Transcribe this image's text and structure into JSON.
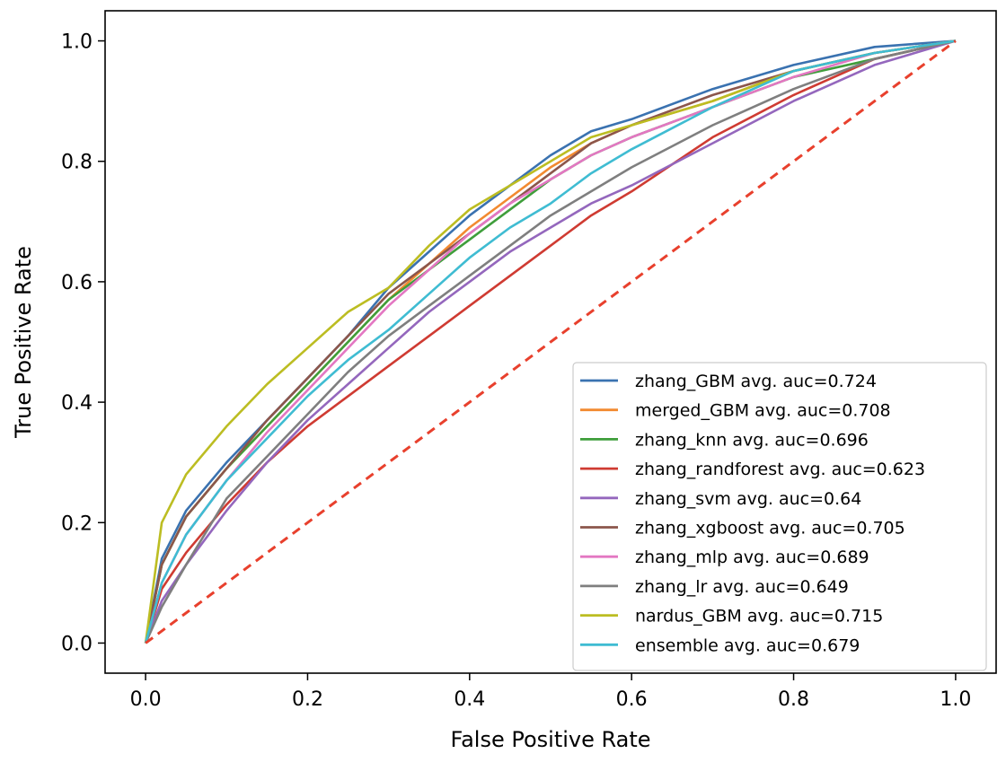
{
  "chart_data": {
    "type": "line",
    "title": "",
    "xlabel": "False Positive Rate",
    "ylabel": "True Positive Rate",
    "xlim": [
      -0.05,
      1.05
    ],
    "ylim": [
      -0.05,
      1.05
    ],
    "xticks": [
      "0.0",
      "0.2",
      "0.4",
      "0.6",
      "0.8",
      "1.0"
    ],
    "yticks": [
      "0.0",
      "0.2",
      "0.4",
      "0.6",
      "0.8",
      "1.0"
    ],
    "grid": false,
    "legend_position": "lower-right",
    "diagonal": {
      "x": [
        0,
        1
      ],
      "y": [
        0,
        1
      ],
      "color": "#e8402d",
      "style": "dashed"
    },
    "series": [
      {
        "name": "zhang_GBM avg. auc=0.724",
        "color": "#3a72b0",
        "x": [
          0,
          0.02,
          0.05,
          0.1,
          0.15,
          0.2,
          0.25,
          0.3,
          0.35,
          0.4,
          0.45,
          0.5,
          0.55,
          0.6,
          0.7,
          0.8,
          0.9,
          1.0
        ],
        "y": [
          0,
          0.14,
          0.22,
          0.3,
          0.37,
          0.44,
          0.51,
          0.59,
          0.65,
          0.71,
          0.76,
          0.81,
          0.85,
          0.87,
          0.92,
          0.96,
          0.99,
          1.0
        ]
      },
      {
        "name": "merged_GBM avg. auc=0.708",
        "color": "#f28a30",
        "x": [
          0,
          0.02,
          0.05,
          0.1,
          0.15,
          0.2,
          0.25,
          0.3,
          0.35,
          0.4,
          0.45,
          0.5,
          0.55,
          0.6,
          0.7,
          0.8,
          0.9,
          1.0
        ],
        "y": [
          0,
          0.13,
          0.21,
          0.29,
          0.36,
          0.43,
          0.5,
          0.57,
          0.63,
          0.69,
          0.74,
          0.79,
          0.83,
          0.86,
          0.9,
          0.95,
          0.98,
          1.0
        ]
      },
      {
        "name": "zhang_knn avg. auc=0.696",
        "color": "#3f9e3b",
        "x": [
          0,
          0.02,
          0.05,
          0.1,
          0.15,
          0.2,
          0.25,
          0.3,
          0.35,
          0.4,
          0.45,
          0.5,
          0.55,
          0.6,
          0.7,
          0.8,
          0.9,
          1.0
        ],
        "y": [
          0,
          0.13,
          0.21,
          0.29,
          0.36,
          0.43,
          0.5,
          0.57,
          0.62,
          0.67,
          0.72,
          0.77,
          0.81,
          0.84,
          0.89,
          0.94,
          0.97,
          1.0
        ]
      },
      {
        "name": "zhang_randforest avg. auc=0.623",
        "color": "#cf3b32",
        "x": [
          0,
          0.02,
          0.05,
          0.1,
          0.15,
          0.2,
          0.25,
          0.3,
          0.35,
          0.4,
          0.45,
          0.5,
          0.55,
          0.6,
          0.7,
          0.8,
          0.9,
          1.0
        ],
        "y": [
          0,
          0.09,
          0.15,
          0.23,
          0.3,
          0.36,
          0.41,
          0.46,
          0.51,
          0.56,
          0.61,
          0.66,
          0.71,
          0.75,
          0.84,
          0.91,
          0.97,
          1.0
        ]
      },
      {
        "name": "zhang_svm avg. auc=0.64",
        "color": "#9467bd",
        "x": [
          0,
          0.02,
          0.05,
          0.1,
          0.15,
          0.2,
          0.25,
          0.3,
          0.35,
          0.4,
          0.45,
          0.5,
          0.55,
          0.6,
          0.7,
          0.8,
          0.9,
          1.0
        ],
        "y": [
          0,
          0.07,
          0.13,
          0.22,
          0.3,
          0.37,
          0.43,
          0.49,
          0.55,
          0.6,
          0.65,
          0.69,
          0.73,
          0.76,
          0.83,
          0.9,
          0.96,
          1.0
        ]
      },
      {
        "name": "zhang_xgboost avg. auc=0.705",
        "color": "#8c564b",
        "x": [
          0,
          0.02,
          0.05,
          0.1,
          0.15,
          0.2,
          0.25,
          0.3,
          0.35,
          0.4,
          0.45,
          0.5,
          0.55,
          0.6,
          0.7,
          0.8,
          0.9,
          1.0
        ],
        "y": [
          0,
          0.13,
          0.21,
          0.29,
          0.37,
          0.44,
          0.51,
          0.58,
          0.63,
          0.68,
          0.73,
          0.78,
          0.83,
          0.86,
          0.91,
          0.95,
          0.98,
          1.0
        ]
      },
      {
        "name": "zhang_mlp avg. auc=0.689",
        "color": "#e377c2",
        "x": [
          0,
          0.02,
          0.05,
          0.1,
          0.15,
          0.2,
          0.25,
          0.3,
          0.35,
          0.4,
          0.45,
          0.5,
          0.55,
          0.6,
          0.7,
          0.8,
          0.9,
          1.0
        ],
        "y": [
          0,
          0.1,
          0.18,
          0.27,
          0.35,
          0.42,
          0.49,
          0.56,
          0.62,
          0.68,
          0.73,
          0.77,
          0.81,
          0.84,
          0.89,
          0.94,
          0.98,
          1.0
        ]
      },
      {
        "name": "zhang_lr avg. auc=0.649",
        "color": "#7f7f7f",
        "x": [
          0,
          0.02,
          0.05,
          0.1,
          0.15,
          0.2,
          0.25,
          0.3,
          0.35,
          0.4,
          0.45,
          0.5,
          0.55,
          0.6,
          0.7,
          0.8,
          0.9,
          1.0
        ],
        "y": [
          0,
          0.06,
          0.13,
          0.24,
          0.31,
          0.38,
          0.45,
          0.51,
          0.56,
          0.61,
          0.66,
          0.71,
          0.75,
          0.79,
          0.86,
          0.92,
          0.97,
          1.0
        ]
      },
      {
        "name": "nardus_GBM avg. auc=0.715",
        "color": "#bcbd22",
        "x": [
          0,
          0.02,
          0.05,
          0.1,
          0.15,
          0.2,
          0.25,
          0.3,
          0.35,
          0.4,
          0.45,
          0.5,
          0.55,
          0.6,
          0.7,
          0.8,
          0.9,
          1.0
        ],
        "y": [
          0,
          0.2,
          0.28,
          0.36,
          0.43,
          0.49,
          0.55,
          0.59,
          0.66,
          0.72,
          0.76,
          0.8,
          0.84,
          0.86,
          0.9,
          0.95,
          0.98,
          1.0
        ]
      },
      {
        "name": "ensemble avg. auc=0.679",
        "color": "#3fbcd2",
        "x": [
          0,
          0.02,
          0.05,
          0.1,
          0.15,
          0.2,
          0.25,
          0.3,
          0.35,
          0.4,
          0.45,
          0.5,
          0.55,
          0.6,
          0.7,
          0.8,
          0.9,
          1.0
        ],
        "y": [
          0,
          0.1,
          0.18,
          0.27,
          0.34,
          0.41,
          0.47,
          0.52,
          0.58,
          0.64,
          0.69,
          0.73,
          0.78,
          0.82,
          0.89,
          0.95,
          0.98,
          1.0
        ]
      }
    ]
  }
}
